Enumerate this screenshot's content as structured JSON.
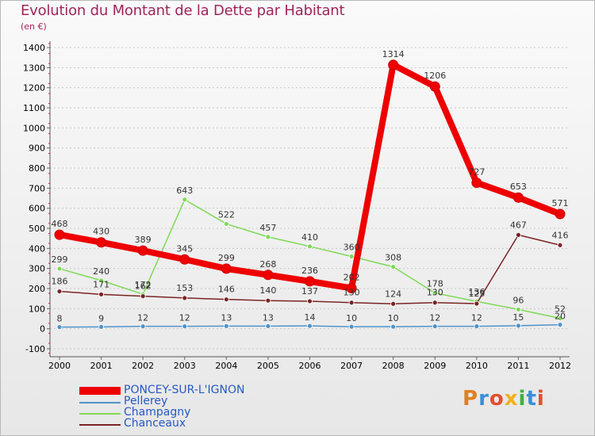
{
  "header": {
    "title": "Evolution du Montant de la Dette par Habitant",
    "subtitle": "(en €)"
  },
  "logo": {
    "text": "Proxiti",
    "letters": [
      {
        "char": "P",
        "color": "#e08020"
      },
      {
        "char": "r",
        "color": "#3a8fd8"
      },
      {
        "char": "o",
        "color": "#e05030"
      },
      {
        "char": "x",
        "color": "#f0b020"
      },
      {
        "char": "i",
        "color": "#40b040"
      },
      {
        "char": "t",
        "color": "#3a8fd8"
      },
      {
        "char": "i",
        "color": "#e05030"
      }
    ]
  },
  "chart_data": {
    "type": "line",
    "title": "Evolution du Montant de la Dette par Habitant",
    "subtitle": "(en €)",
    "xlabel": "",
    "ylabel": "",
    "x": [
      "2000",
      "2001",
      "2002",
      "2003",
      "2004",
      "2005",
      "2006",
      "2007",
      "2008",
      "2009",
      "2010",
      "2011",
      "2012"
    ],
    "ylim": [
      -100,
      1400
    ],
    "yticks": [
      "-100",
      "0",
      "100",
      "200",
      "300",
      "400",
      "500",
      "600",
      "700",
      "800",
      "900",
      "1000",
      "1100",
      "1200",
      "1300",
      "1400"
    ],
    "grid": "horizontal dashed",
    "legend": "bottom-left",
    "series": [
      {
        "name": "PONCEY-SUR-L'IGNON",
        "color": "#ee0000",
        "values": [
          468,
          430,
          389,
          345,
          299,
          268,
          236,
          202,
          1314,
          1206,
          727,
          653,
          571
        ],
        "labels": [
          "468",
          "430",
          "389",
          "345",
          "299",
          "268",
          "236",
          "202",
          "1314",
          "1206",
          "727",
          "653",
          "571"
        ]
      },
      {
        "name": "Pellerey",
        "color": "#4f93c9",
        "values": [
          8,
          9,
          12,
          12,
          13,
          13,
          14,
          10,
          10,
          12,
          12,
          15,
          20
        ],
        "labels": [
          "8",
          "9",
          "12",
          "12",
          "13",
          "13",
          "14",
          "10",
          "10",
          "12",
          "12",
          "15",
          "20"
        ]
      },
      {
        "name": "Champagny",
        "color": "#7ed957",
        "values": [
          299,
          240,
          172,
          643,
          522,
          457,
          410,
          360,
          308,
          178,
          136,
          96,
          52
        ],
        "labels": [
          "299",
          "240",
          "172",
          "643",
          "522",
          "457",
          "410",
          "360",
          "308",
          "178",
          "136",
          "96",
          "52"
        ]
      },
      {
        "name": "Chanceaux",
        "color": "#7a2424",
        "values": [
          186,
          171,
          162,
          153,
          146,
          140,
          137,
          130,
          124,
          130,
          125,
          467,
          416
        ],
        "labels": [
          "186",
          "171",
          "162",
          "153",
          "146",
          "140",
          "137",
          "130",
          "124",
          "130",
          "125",
          "467",
          "416"
        ]
      }
    ]
  }
}
